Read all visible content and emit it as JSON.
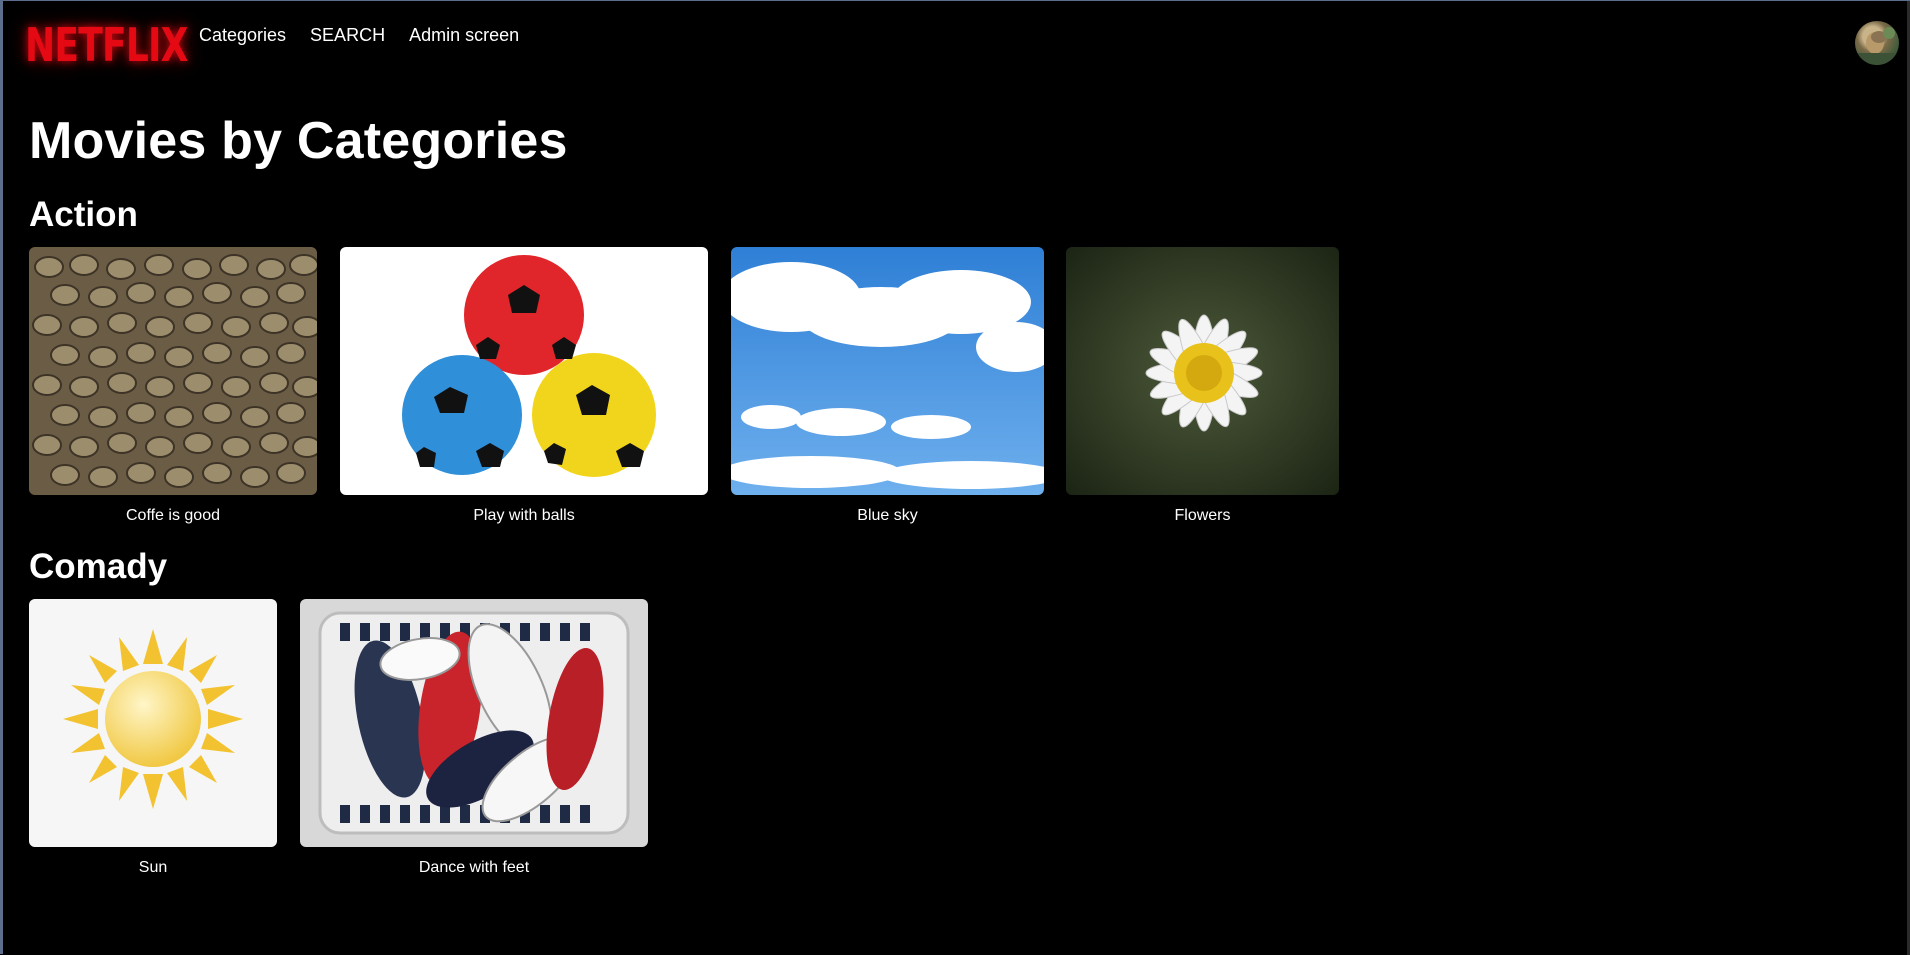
{
  "header": {
    "logo": "NETFLIX",
    "nav": [
      "Categories",
      "SEARCH",
      "Admin screen"
    ]
  },
  "main": {
    "title": "Movies by Categories",
    "categories": [
      {
        "name": "Action",
        "movies": [
          {
            "title": "Coffe is good",
            "icon": "coffee-beans-image"
          },
          {
            "title": "Play with balls",
            "icon": "soccer-balls-image"
          },
          {
            "title": "Blue sky",
            "icon": "sky-clouds-image"
          },
          {
            "title": "Flowers",
            "icon": "daisy-flower-image"
          }
        ]
      },
      {
        "name": "Comady",
        "movies": [
          {
            "title": "Sun",
            "icon": "sun-image"
          },
          {
            "title": "Dance with feet",
            "icon": "sneakers-image"
          }
        ]
      }
    ]
  },
  "colors": {
    "brand": "#e50914",
    "background": "#000000",
    "text": "#ffffff"
  }
}
